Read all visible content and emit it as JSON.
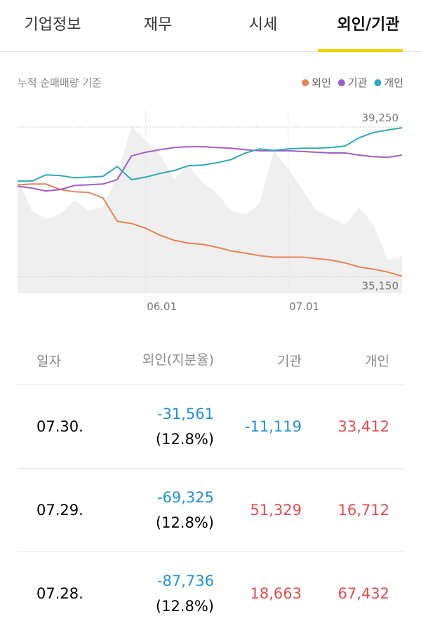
{
  "tabs": {
    "items": [
      "기업정보",
      "재무",
      "시세",
      "외인/기관"
    ],
    "active": 3
  },
  "chart_data": {
    "type": "line",
    "subtitle": "누적 순매매량 기준",
    "categories": [
      null,
      null,
      null,
      null,
      null,
      null,
      null,
      null,
      null,
      "06.01",
      null,
      null,
      null,
      null,
      null,
      null,
      null,
      null,
      null,
      "07.01",
      null,
      null,
      null,
      null,
      null,
      null,
      null,
      null
    ],
    "series": [
      {
        "name": "외인",
        "color": "#e8825a",
        "values": [
          37670,
          37690,
          37690,
          37540,
          37480,
          37460,
          37310,
          36670,
          36610,
          36480,
          36290,
          36150,
          36070,
          36040,
          35960,
          35860,
          35800,
          35730,
          35690,
          35690,
          35690,
          35650,
          35610,
          35530,
          35420,
          35360,
          35280,
          35170
        ]
      },
      {
        "name": "기관",
        "color": "#a05ccc",
        "values": [
          37630,
          37580,
          37500,
          37540,
          37650,
          37670,
          37690,
          37810,
          38460,
          38560,
          38630,
          38690,
          38710,
          38710,
          38690,
          38670,
          38630,
          38600,
          38600,
          38600,
          38580,
          38560,
          38540,
          38540,
          38480,
          38440,
          38420,
          38480
        ]
      },
      {
        "name": "개인",
        "color": "#2aabb5",
        "values": [
          37770,
          37770,
          37940,
          37920,
          37860,
          37880,
          37900,
          38170,
          37810,
          37880,
          37980,
          38060,
          38190,
          38210,
          38270,
          38360,
          38540,
          38650,
          38610,
          38650,
          38670,
          38670,
          38690,
          38730,
          38960,
          39100,
          39170,
          39230
        ]
      }
    ],
    "area": {
      "color": "#efefef",
      "values": [
        37830,
        36960,
        36730,
        36860,
        37250,
        36960,
        37060,
        37920,
        39270,
        38880,
        38500,
        37830,
        38210,
        37730,
        37440,
        36960,
        36860,
        37150,
        38600,
        38110,
        37540,
        36960,
        36770,
        36570,
        37060,
        36570,
        35610,
        35710
      ]
    },
    "ylim": [
      34700,
      39750
    ],
    "yticks": [
      {
        "value": 39250,
        "label": "39,250"
      },
      {
        "value": 35150,
        "label": "35,150"
      }
    ]
  },
  "table": {
    "header": [
      "일자",
      "외인(지분율)",
      "기관",
      "개인"
    ],
    "rows": [
      {
        "date": "07.30.",
        "foreign": "-31,561",
        "share": "(12.8%)",
        "institution": "-11,119",
        "individual": "33,412"
      },
      {
        "date": "07.29.",
        "foreign": "-69,325",
        "share": "(12.8%)",
        "institution": "51,329",
        "individual": "16,712"
      },
      {
        "date": "07.28.",
        "foreign": "-87,736",
        "share": "(12.8%)",
        "institution": "18,663",
        "individual": "67,432"
      }
    ]
  }
}
